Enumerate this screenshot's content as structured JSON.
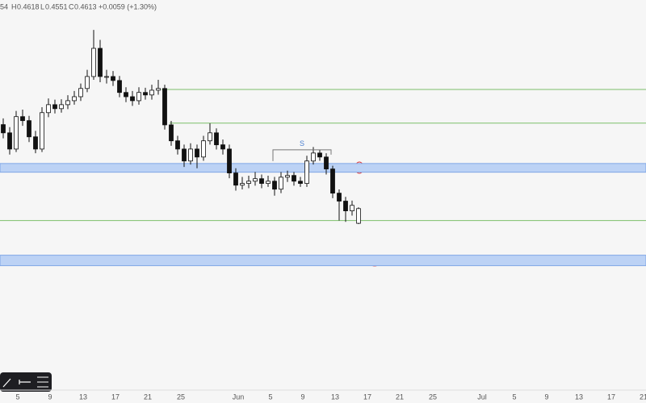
{
  "chart_data": {
    "type": "candlestick",
    "header": {
      "open_fragment": "54",
      "high_label": "H",
      "low_label": "L",
      "close_label": "C",
      "change": "+0.0059 (+1.30%)"
    },
    "ylim": [
      0.393,
      0.545
    ],
    "open": [
      0.495,
      0.4917,
      0.4852,
      0.4982,
      0.4966,
      0.4901,
      0.4852,
      0.4998,
      0.503,
      0.5014,
      0.503,
      0.5046,
      0.5062,
      0.5095,
      0.5143,
      0.5256,
      0.5143,
      0.5143,
      0.5127,
      0.5079,
      0.5062,
      0.5046,
      0.5079,
      0.5069,
      0.5088,
      0.5095,
      0.4949,
      0.4885,
      0.4852,
      0.4804,
      0.4852,
      0.482,
      0.4885,
      0.4917,
      0.4869,
      0.4852,
      0.4756,
      0.4707,
      0.4714,
      0.4723,
      0.4733,
      0.4714,
      0.4723,
      0.4691,
      0.4739,
      0.4746,
      0.4723,
      0.4714,
      0.4804,
      0.4836,
      0.482,
      0.4772,
      0.4675,
      0.4643,
      0.4604,
      0.4554
    ],
    "high": [
      0.4975,
      0.494,
      0.5005,
      0.501,
      0.4985,
      0.4925,
      0.502,
      0.5055,
      0.505,
      0.5052,
      0.5068,
      0.5085,
      0.5115,
      0.517,
      0.533,
      0.529,
      0.517,
      0.5165,
      0.5145,
      0.51,
      0.5085,
      0.51,
      0.5098,
      0.511,
      0.513,
      0.511,
      0.4965,
      0.4905,
      0.487,
      0.4875,
      0.487,
      0.4905,
      0.4955,
      0.4935,
      0.489,
      0.487,
      0.4775,
      0.474,
      0.4745,
      0.476,
      0.475,
      0.4745,
      0.474,
      0.476,
      0.4765,
      0.476,
      0.474,
      0.4825,
      0.486,
      0.485,
      0.4835,
      0.4785,
      0.469,
      0.466,
      0.4645,
      0.4618
    ],
    "low": [
      0.4895,
      0.483,
      0.484,
      0.4945,
      0.488,
      0.4835,
      0.484,
      0.498,
      0.4995,
      0.4998,
      0.5012,
      0.503,
      0.5045,
      0.508,
      0.513,
      0.512,
      0.5115,
      0.5105,
      0.506,
      0.504,
      0.5025,
      0.503,
      0.505,
      0.505,
      0.507,
      0.493,
      0.4865,
      0.483,
      0.478,
      0.479,
      0.4775,
      0.4805,
      0.487,
      0.485,
      0.483,
      0.4735,
      0.4685,
      0.469,
      0.4695,
      0.4705,
      0.4695,
      0.47,
      0.4665,
      0.4675,
      0.472,
      0.4705,
      0.47,
      0.47,
      0.479,
      0.4805,
      0.475,
      0.4655,
      0.4565,
      0.456,
      0.4585,
      0.4551
    ],
    "close": [
      0.4917,
      0.4852,
      0.4982,
      0.4966,
      0.4901,
      0.4852,
      0.4998,
      0.503,
      0.5014,
      0.503,
      0.5046,
      0.5062,
      0.5095,
      0.5143,
      0.5256,
      0.5143,
      0.5143,
      0.5127,
      0.5079,
      0.5062,
      0.5046,
      0.5079,
      0.5069,
      0.5088,
      0.5095,
      0.4949,
      0.4885,
      0.4852,
      0.4804,
      0.4852,
      0.482,
      0.4885,
      0.4917,
      0.4869,
      0.4852,
      0.4756,
      0.4707,
      0.4714,
      0.4723,
      0.4733,
      0.4714,
      0.4723,
      0.4691,
      0.4739,
      0.4746,
      0.4723,
      0.4714,
      0.4804,
      0.4836,
      0.482,
      0.4772,
      0.4675,
      0.4643,
      0.4604,
      0.4626,
      0.4613
    ],
    "horizontal_lines": [
      0.5091,
      0.4956,
      0.4565
    ],
    "line_color": "#7cbf6a",
    "zones": [
      [
        0.4794,
        0.4759
      ],
      [
        0.4426,
        0.4384
      ]
    ],
    "zone_color": "#bcd2f5",
    "s_level": {
      "label": "S",
      "value": 0.4849
    },
    "x_labels": [
      "5",
      "9",
      "13",
      "17",
      "21",
      "25",
      "Jun",
      "5",
      "9",
      "13",
      "17",
      "21",
      "25",
      "Jul",
      "5",
      "9",
      "13",
      "17",
      "21"
    ]
  }
}
